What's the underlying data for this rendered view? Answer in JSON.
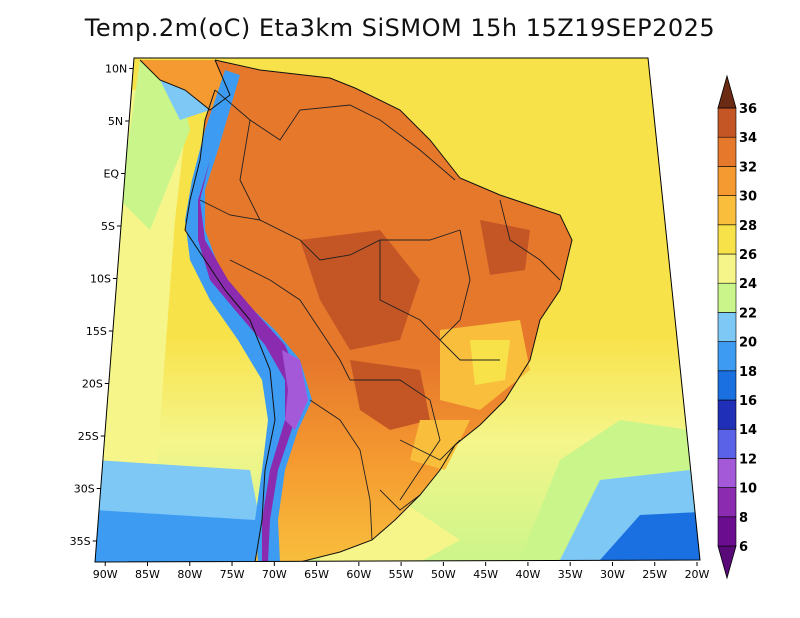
{
  "title": "Temp.2m(oC) Eta3km SiSMOM 15h 15Z19SEP2025",
  "map": {
    "projection": "polar-stereo-like (shown as trapezoid)",
    "lon_range": [
      -90,
      -20
    ],
    "lat_range": [
      -37,
      11
    ],
    "lat_ticks": [
      {
        "lat": 10,
        "label": "10N"
      },
      {
        "lat": 5,
        "label": "5N"
      },
      {
        "lat": 0,
        "label": "EQ"
      },
      {
        "lat": -5,
        "label": "5S"
      },
      {
        "lat": -10,
        "label": "10S"
      },
      {
        "lat": -15,
        "label": "15S"
      },
      {
        "lat": -20,
        "label": "20S"
      },
      {
        "lat": -25,
        "label": "25S"
      },
      {
        "lat": -30,
        "label": "30S"
      },
      {
        "lat": -35,
        "label": "35S"
      }
    ],
    "lon_ticks": [
      {
        "lon": -90,
        "label": "90W"
      },
      {
        "lon": -85,
        "label": "85W"
      },
      {
        "lon": -80,
        "label": "80W"
      },
      {
        "lon": -75,
        "label": "75W"
      },
      {
        "lon": -70,
        "label": "70W"
      },
      {
        "lon": -65,
        "label": "65W"
      },
      {
        "lon": -60,
        "label": "60W"
      },
      {
        "lon": -55,
        "label": "55W"
      },
      {
        "lon": -50,
        "label": "50W"
      },
      {
        "lon": -45,
        "label": "45W"
      },
      {
        "lon": -40,
        "label": "40W"
      },
      {
        "lon": -35,
        "label": "35W"
      },
      {
        "lon": -30,
        "label": "30W"
      },
      {
        "lon": -25,
        "label": "25W"
      },
      {
        "lon": -20,
        "label": "20W"
      }
    ]
  },
  "colorbar": {
    "levels": [
      {
        "value": 6,
        "label": "6",
        "color": "#6a0d8f"
      },
      {
        "value": 8,
        "label": "8",
        "color": "#8a2bb0"
      },
      {
        "value": 10,
        "label": "10",
        "color": "#a45ad8"
      },
      {
        "value": 12,
        "label": "12",
        "color": "#5a62e8"
      },
      {
        "value": 14,
        "label": "14",
        "color": "#1f2fb8"
      },
      {
        "value": 16,
        "label": "16",
        "color": "#1a70e0"
      },
      {
        "value": 18,
        "label": "18",
        "color": "#3d9cf2"
      },
      {
        "value": 20,
        "label": "20",
        "color": "#7ec8f6"
      },
      {
        "value": 22,
        "label": "22",
        "color": "#c9f58a"
      },
      {
        "value": 24,
        "label": "24",
        "color": "#f5f58a"
      },
      {
        "value": 26,
        "label": "26",
        "color": "#f8e24a"
      },
      {
        "value": 28,
        "label": "28",
        "color": "#f8be3c"
      },
      {
        "value": 30,
        "label": "30",
        "color": "#f59a30"
      },
      {
        "value": 32,
        "label": "32",
        "color": "#e6782c"
      },
      {
        "value": 34,
        "label": "34",
        "color": "#c45626"
      },
      {
        "value": 36,
        "label": "36",
        "color": "#8c3a1c"
      }
    ],
    "min_color": "#5a0a78",
    "max_color": "#6b2a14"
  },
  "colors": {
    "ocean_north": "#f8e24a",
    "ocean_south": "#f5f58a",
    "land_hot": "#e6782c",
    "land_very_hot": "#c45626",
    "land_warm": "#f59a30",
    "andes_cold": "#8a2bb0",
    "andes_cool": "#3d9cf2",
    "ocean_cool": "#7ec8f6",
    "ocean_cold": "#1a70e0",
    "border_line": "#222222"
  }
}
